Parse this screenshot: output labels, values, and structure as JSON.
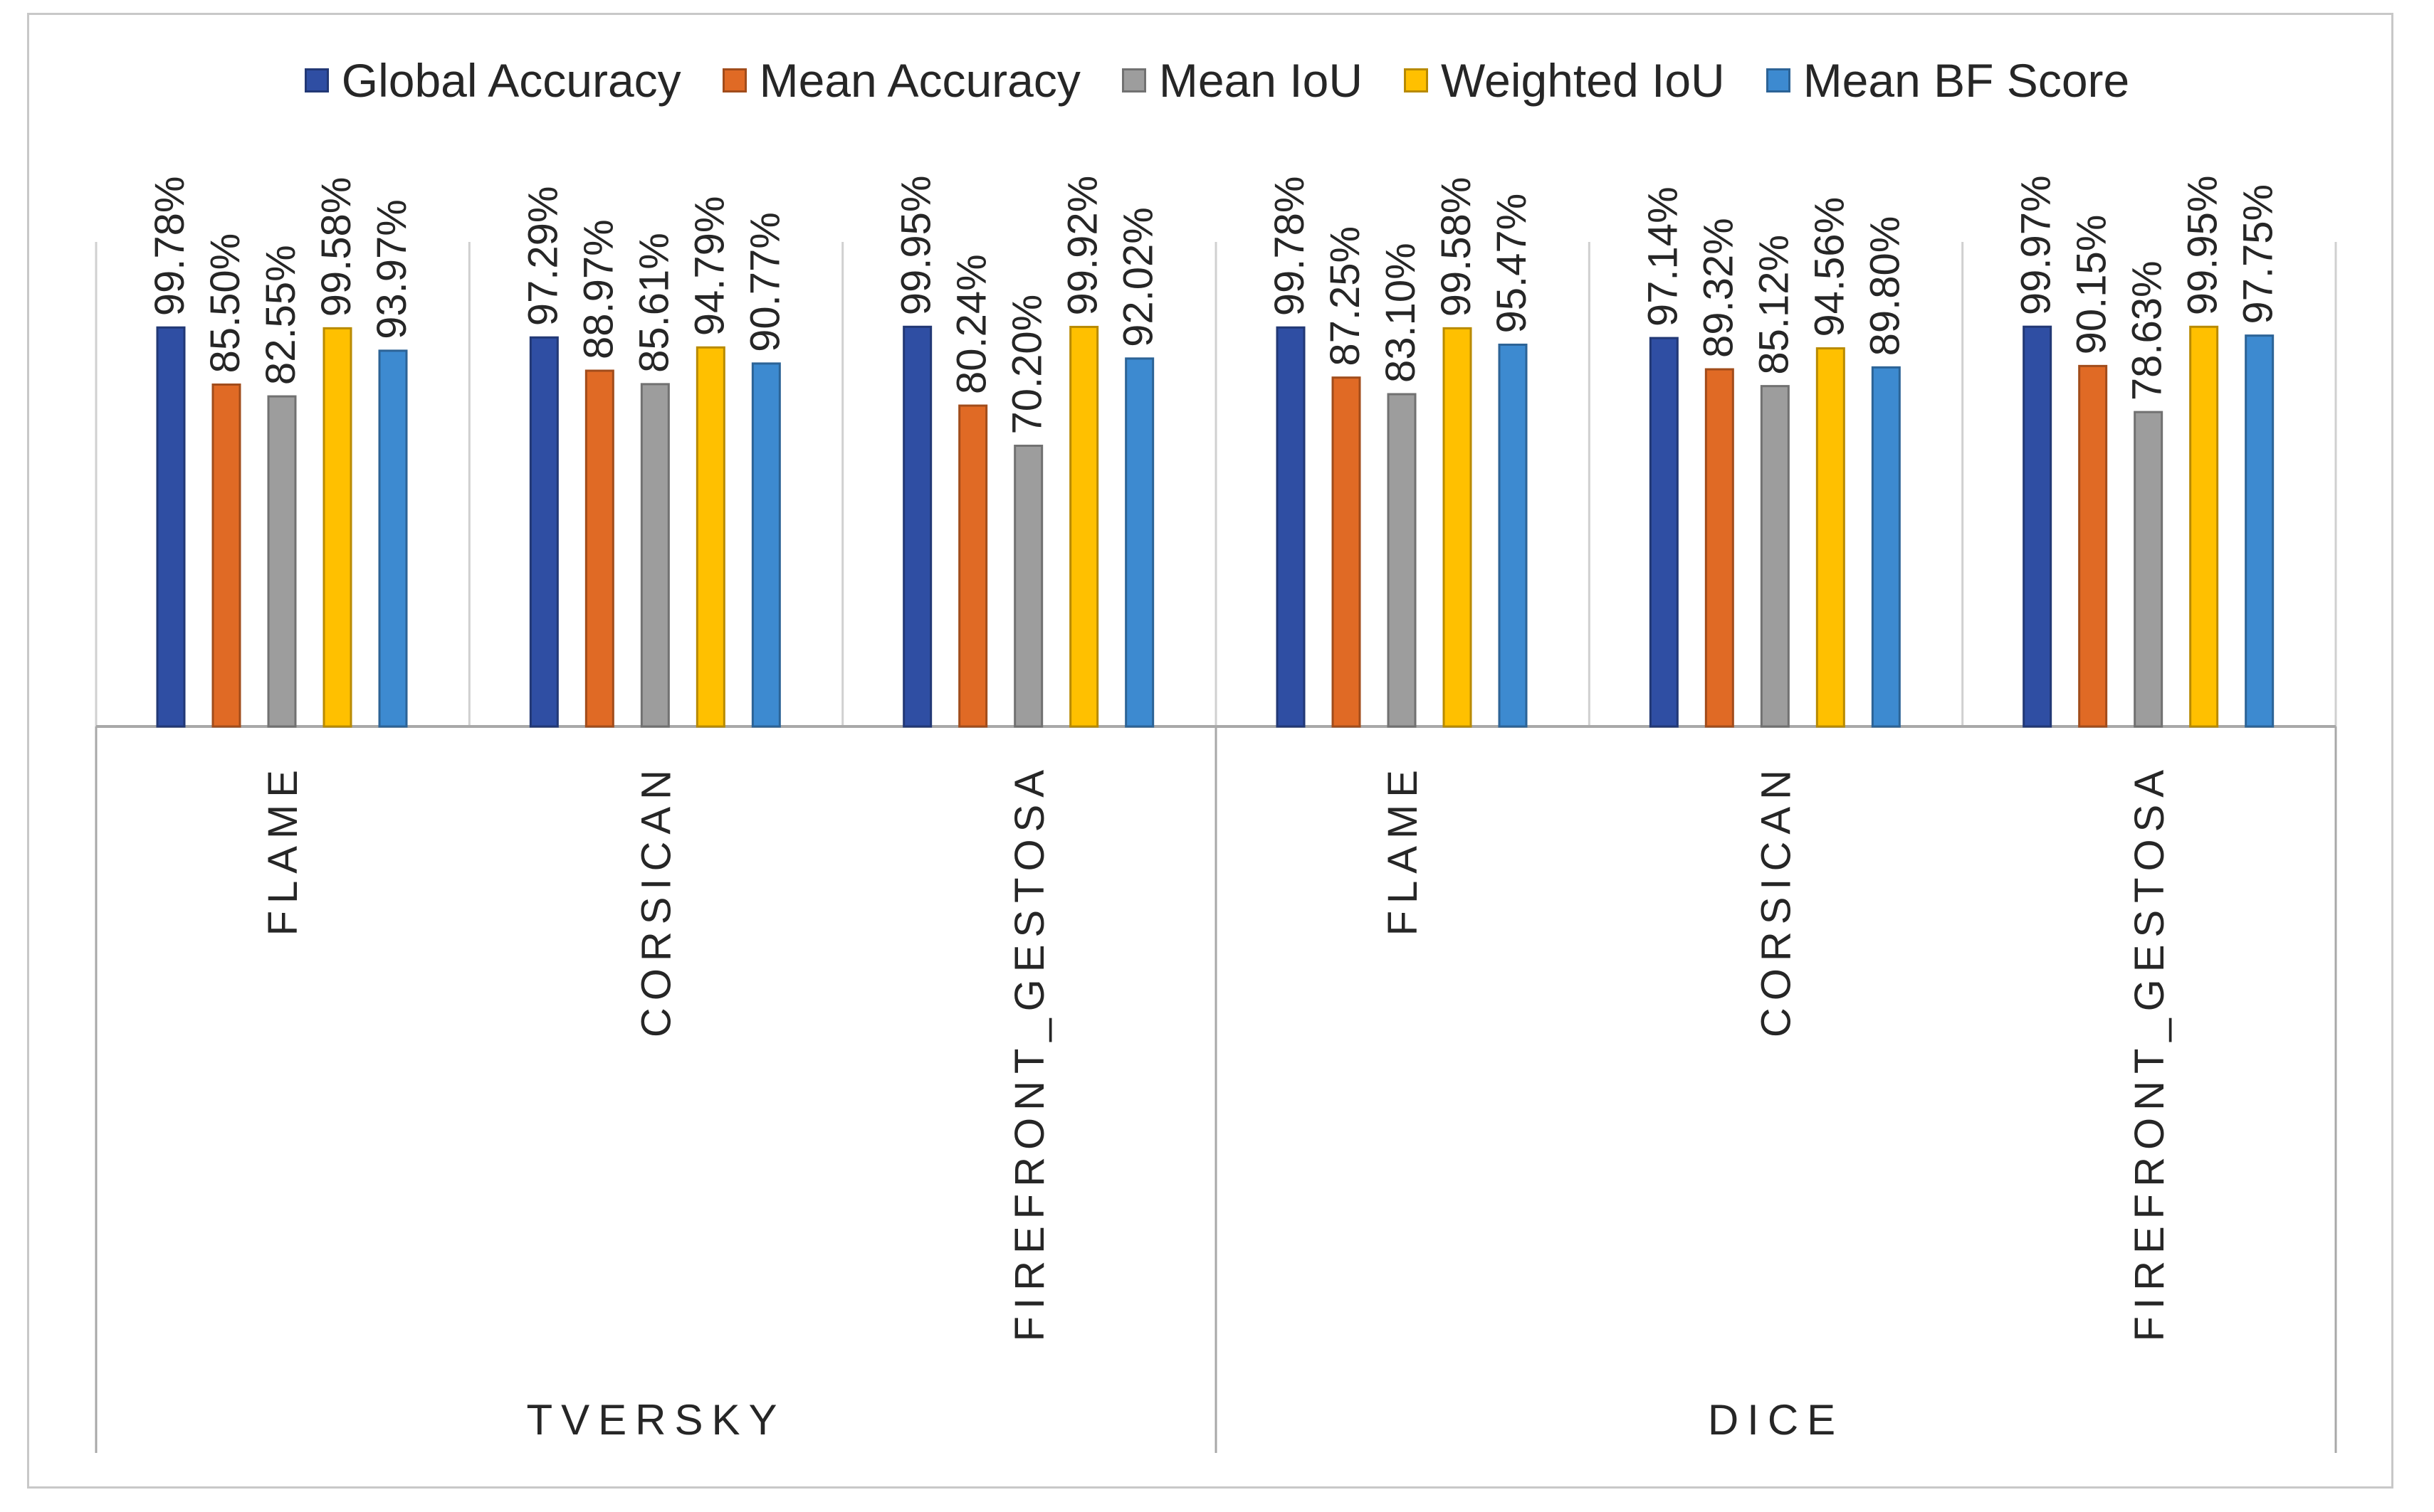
{
  "chart_data": {
    "type": "bar",
    "title": "",
    "xlabel": "",
    "ylabel": "",
    "ylim": [
      0,
      100
    ],
    "grid": false,
    "legend_position": "top",
    "groups": [
      {
        "label": "TVERSKY",
        "categories": [
          "FLAME",
          "CORSICAN",
          "FIREFRONT_GESTOSA"
        ]
      },
      {
        "label": "DICE",
        "categories": [
          "FLAME",
          "CORSICAN",
          "FIREFRONT_GESTOSA"
        ]
      }
    ],
    "categories": [
      "TVERSKY / FLAME",
      "TVERSKY / CORSICAN",
      "TVERSKY / FIREFRONT_GESTOSA",
      "DICE / FLAME",
      "DICE / CORSICAN",
      "DICE / FIREFRONT_GESTOSA"
    ],
    "series": [
      {
        "name": "Global Accuracy",
        "color": "#2f4ea3",
        "values": [
          99.78,
          97.29,
          99.95,
          99.78,
          97.14,
          99.97
        ],
        "labels": [
          "99.78%",
          "97.29%",
          "99.95%",
          "99.78%",
          "97.14%",
          "99.97%"
        ]
      },
      {
        "name": "Mean Accuracy",
        "color": "#e06a25",
        "values": [
          85.5,
          88.97,
          80.24,
          87.25,
          89.32,
          90.15
        ],
        "labels": [
          "85.50%",
          "88.97%",
          "80.24%",
          "87.25%",
          "89.32%",
          "90.15%"
        ]
      },
      {
        "name": "Mean IoU",
        "color": "#9d9d9d",
        "values": [
          82.55,
          85.61,
          70.2,
          83.1,
          85.12,
          78.63
        ],
        "labels": [
          "82.55%",
          "85.61%",
          "70.20%",
          "83.10%",
          "85.12%",
          "78.63%"
        ]
      },
      {
        "name": "Weighted IoU",
        "color": "#ffc000",
        "values": [
          99.58,
          94.79,
          99.92,
          99.58,
          94.56,
          99.95
        ],
        "labels": [
          "99.58%",
          "94.79%",
          "99.92%",
          "99.58%",
          "94.56%",
          "99.95%"
        ]
      },
      {
        "name": "Mean BF Score",
        "color": "#3d8ad0",
        "values": [
          93.97,
          90.77,
          92.02,
          95.47,
          89.8,
          97.75
        ],
        "labels": [
          "93.97%",
          "90.77%",
          "92.02%",
          "95.47%",
          "89.80%",
          "97.75%"
        ]
      }
    ]
  }
}
